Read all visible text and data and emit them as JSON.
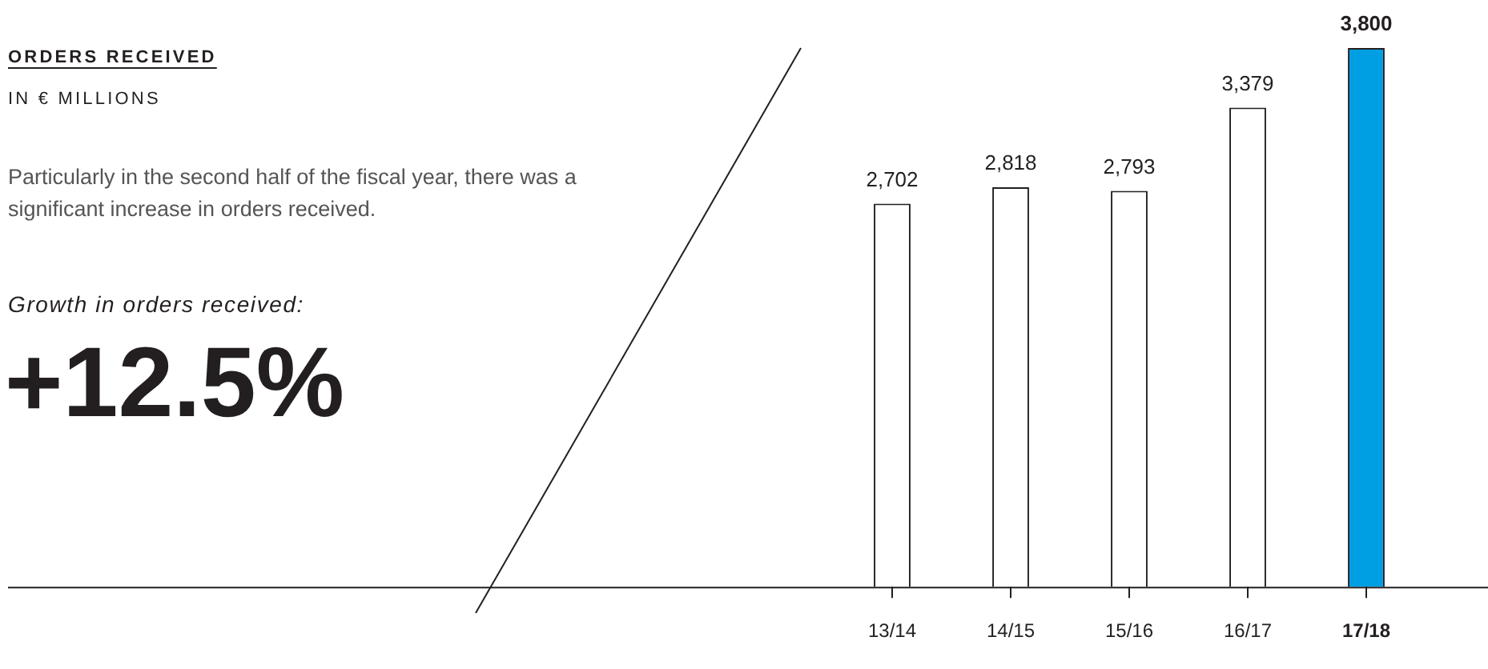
{
  "chart_data": {
    "type": "bar",
    "title": "ORDERS RECEIVED",
    "subtitle": "IN € MILLIONS",
    "annotations": [
      "Particularly in the second half of the fiscal year, there was a significant increase in orders received.",
      "Growth in orders received:",
      "+12.5%"
    ],
    "categories": [
      "13/14",
      "14/15",
      "15/16",
      "16/17",
      "17/18"
    ],
    "values": [
      2702,
      2818,
      2793,
      3379,
      3800
    ],
    "value_labels": [
      "2,702",
      "2,818",
      "2,793",
      "3,379",
      "3,800"
    ],
    "colors": [
      "#ffffff",
      "#ffffff",
      "#ffffff",
      "#ffffff",
      "#009fe3"
    ],
    "grid": false,
    "legend": false
  }
}
